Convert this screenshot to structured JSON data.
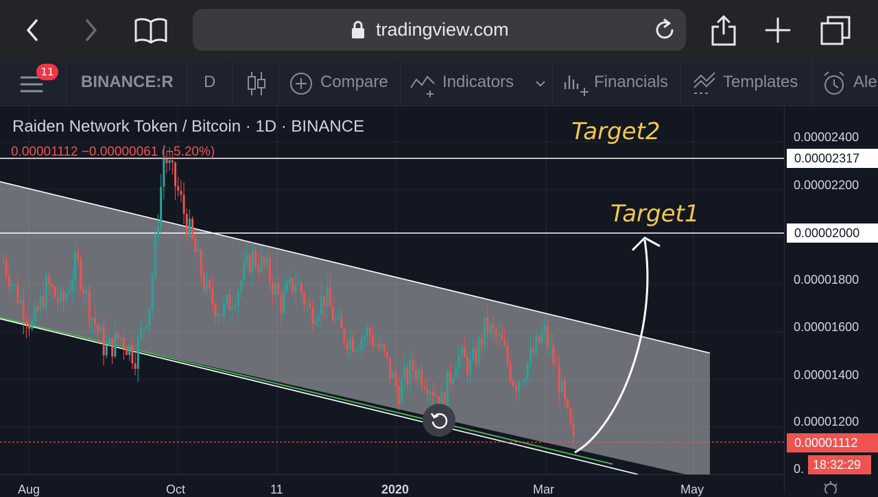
{
  "browser": {
    "url": "tradingview.com",
    "icons": [
      "back-chevron-icon",
      "forward-chevron-icon",
      "book-icon",
      "lock-icon",
      "reload-icon",
      "share-icon",
      "plus-icon",
      "tabs-icon"
    ]
  },
  "toolbar": {
    "badge_count": "11",
    "symbol": "BINANCE:RD",
    "interval": "D",
    "compare_label": "Compare",
    "indicators_label": "Indicators",
    "financials_label": "Financials",
    "templates_label": "Templates",
    "alert_label": "Ale"
  },
  "legend": {
    "title": "Raiden Network Token / Bitcoin · 1D · BINANCE",
    "values": "0.00001112 −0.00000061 (−5.20%)"
  },
  "annotations": {
    "target2": "Target2",
    "target1": "Target1"
  },
  "axis": {
    "ticks": [
      "0.00002400",
      "0.00002200",
      "0.00001800",
      "0.00001600",
      "0.00001400",
      "0.00001200",
      "0."
    ],
    "level_target2": "0.00002317",
    "level_target1": "0.00002000",
    "last_price": "0.00001112",
    "countdown": "18:32:29",
    "x_ticks": [
      "Aug",
      "Oct",
      "11",
      "2020",
      "Mar",
      "May"
    ]
  },
  "colors": {
    "up": "#26a69a",
    "down": "#ef5350",
    "channel": "#ffffff",
    "support": "#4caf50",
    "target_text": "#f2c74c"
  },
  "chart_data": {
    "type": "candlestick",
    "title": "Raiden Network Token / Bitcoin · 1D · BINANCE",
    "x": [
      "Aug",
      "Oct",
      "11",
      "2020",
      "Mar",
      "May"
    ],
    "close_path": [
      [
        "Aug",
        1.9e-05
      ],
      [
        "Aug",
        1.75e-05
      ],
      [
        "Aug",
        1.62e-05
      ],
      [
        "Aug",
        1.8e-05
      ],
      [
        "Aug",
        1.71e-05
      ],
      [
        "Aug",
        1.9e-05
      ],
      [
        "Aug",
        1.68e-05
      ],
      [
        "Aug",
        1.52e-05
      ],
      [
        "Aug",
        1.58e-05
      ],
      [
        "Aug",
        1.5e-05
      ],
      [
        "Oct",
        1.72e-05
      ],
      [
        "Oct",
        2.35e-05
      ],
      [
        "Oct",
        2.18e-05
      ],
      [
        "Oct",
        1.96e-05
      ],
      [
        "Oct",
        1.75e-05
      ],
      [
        "Oct",
        1.68e-05
      ],
      [
        "Oct",
        1.78e-05
      ],
      [
        "Oct",
        1.92e-05
      ],
      [
        "11",
        1.86e-05
      ],
      [
        "11",
        1.72e-05
      ],
      [
        "11",
        1.82e-05
      ],
      [
        "11",
        1.68e-05
      ],
      [
        "11",
        1.75e-05
      ],
      [
        "11",
        1.6e-05
      ],
      [
        "11",
        1.56e-05
      ],
      [
        "2020",
        1.6e-05
      ],
      [
        "2020",
        1.5e-05
      ],
      [
        "2020",
        1.35e-05
      ],
      [
        "2020",
        1.45e-05
      ],
      [
        "2020",
        1.4e-05
      ],
      [
        "2020",
        1.3e-05
      ],
      [
        "2020",
        1.5e-05
      ],
      [
        "2020",
        1.45e-05
      ],
      [
        "Mar",
        1.62e-05
      ],
      [
        "Mar",
        1.56e-05
      ],
      [
        "Mar",
        1.38e-05
      ],
      [
        "Mar",
        1.48e-05
      ],
      [
        "Mar",
        1.6e-05
      ],
      [
        "Mar",
        1.4e-05
      ],
      [
        "Mar",
        1.12e-05
      ]
    ],
    "horizontal_levels": [
      2.317e-05,
      2e-05,
      1.112e-05
    ],
    "last_price": 1.112e-05,
    "change": -6.1e-07,
    "change_percent": -5.2,
    "y_range": [
      1e-05,
      2.55e-05
    ]
  }
}
